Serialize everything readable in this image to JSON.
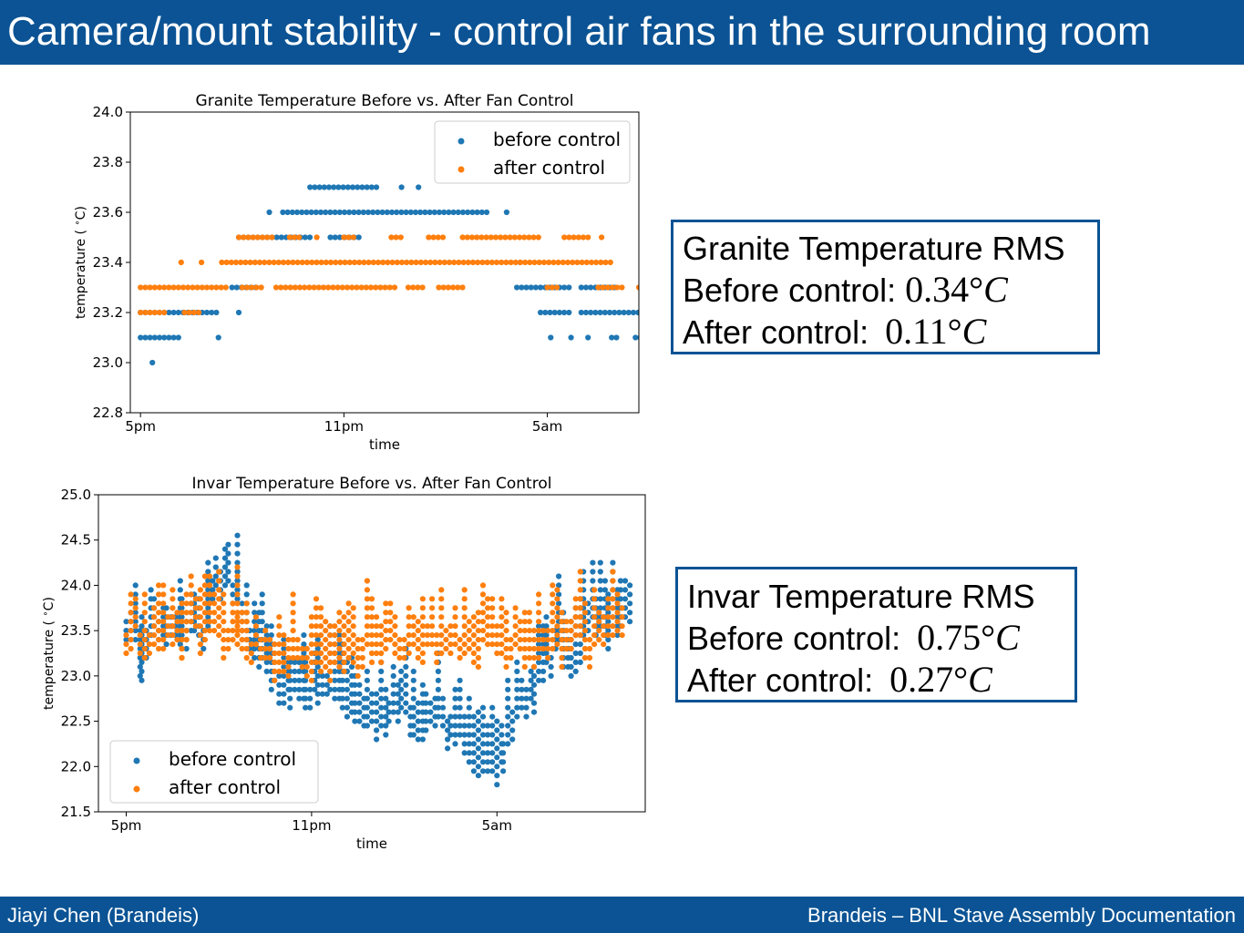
{
  "header": {
    "title": "Camera/mount stability - control air fans in the surrounding room"
  },
  "footer": {
    "left": "Jiayi Chen (Brandeis)",
    "right": "Brandeis – BNL Stave Assembly Documentation"
  },
  "rms_boxes": {
    "granite": {
      "title": "Granite Temperature RMS",
      "before_label": "Before control:",
      "before_value": "0.34°",
      "before_unit": "C",
      "after_label": "After control:",
      "after_value": "0.11°",
      "after_unit": "C"
    },
    "invar": {
      "title": "Invar Temperature RMS",
      "before_label": "Before control:",
      "before_value": "0.75°",
      "before_unit": "C",
      "after_label": "After control:",
      "after_value": "0.27°",
      "after_unit": "C"
    }
  },
  "colors": {
    "brand": "#0b5394",
    "before": "#1f77b4",
    "after": "#ff7f0e"
  },
  "chart_data": [
    {
      "id": "granite",
      "type": "scatter",
      "title": "Granite Temperature Before vs. After Fan Control",
      "xlabel": "time",
      "ylabel": "temperature ($^\\circ$C)",
      "xlim": [
        -0.3,
        14.7
      ],
      "ylim": [
        22.8,
        24.0
      ],
      "yticks": [
        22.8,
        23.0,
        23.2,
        23.4,
        23.6,
        23.8,
        24.0
      ],
      "ytick_labels": [
        "22.8",
        "23.0",
        "23.2",
        "23.4",
        "23.6",
        "23.8",
        "24.0"
      ],
      "xticks": [
        0,
        6,
        12
      ],
      "xtick_labels": [
        "5pm",
        "11pm",
        "5am"
      ],
      "legend": "upper right",
      "series": [
        {
          "name": "before control",
          "color": "#1f77b4",
          "runs": [
            {
              "y": 23.1,
              "x": [
                0,
                1.2
              ]
            },
            {
              "y": 23.1,
              "x": [
                2.3,
                2.3
              ]
            },
            {
              "y": 23.0,
              "x": [
                0.35,
                0.35
              ]
            },
            {
              "y": 23.2,
              "x": [
                0,
                2.3
              ]
            },
            {
              "y": 23.2,
              "x": [
                2.9,
                2.9
              ]
            },
            {
              "y": 23.3,
              "x": [
                2.7,
                3.4
              ]
            },
            {
              "y": 23.5,
              "x": [
                2.9,
                5.0
              ]
            },
            {
              "y": 23.5,
              "x": [
                5.6,
                6.5
              ]
            },
            {
              "y": 23.6,
              "x": [
                3.8,
                3.8
              ]
            },
            {
              "y": 23.6,
              "x": [
                4.2,
                10.3
              ]
            },
            {
              "y": 23.6,
              "x": [
                10.8,
                10.8
              ]
            },
            {
              "y": 23.7,
              "x": [
                5.0,
                7.0
              ]
            },
            {
              "y": 23.7,
              "x": [
                7.7,
                7.7
              ]
            },
            {
              "y": 23.7,
              "x": [
                8.2,
                8.2
              ]
            },
            {
              "y": 23.4,
              "x": [
                11.2,
                11.2
              ]
            },
            {
              "y": 23.3,
              "x": [
                11.1,
                12.7
              ]
            },
            {
              "y": 23.3,
              "x": [
                13.0,
                14.0
              ]
            },
            {
              "y": 23.2,
              "x": [
                11.8,
                12.7
              ]
            },
            {
              "y": 23.2,
              "x": [
                13.0,
                16.0
              ]
            },
            {
              "y": 23.1,
              "x": [
                12.1,
                12.1
              ]
            },
            {
              "y": 23.1,
              "x": [
                12.7,
                12.7
              ]
            },
            {
              "y": 23.1,
              "x": [
                13.2,
                13.2
              ]
            },
            {
              "y": 23.1,
              "x": [
                13.9,
                14.1
              ]
            },
            {
              "y": 23.1,
              "x": [
                14.6,
                15.0
              ]
            },
            {
              "y": 23.1,
              "x": [
                15.7,
                15.7
              ]
            }
          ]
        },
        {
          "name": "after control",
          "color": "#ff7f0e",
          "runs": [
            {
              "y": 23.3,
              "x": [
                0,
                2.6
              ]
            },
            {
              "y": 23.3,
              "x": [
                3.0,
                3.6
              ]
            },
            {
              "y": 23.3,
              "x": [
                4.0,
                7.5
              ]
            },
            {
              "y": 23.3,
              "x": [
                7.9,
                8.4
              ]
            },
            {
              "y": 23.3,
              "x": [
                8.8,
                9.5
              ]
            },
            {
              "y": 23.3,
              "x": [
                12.0,
                12.3
              ]
            },
            {
              "y": 23.3,
              "x": [
                13.5,
                14.3
              ]
            },
            {
              "y": 23.3,
              "x": [
                14.7,
                14.9
              ]
            },
            {
              "y": 23.2,
              "x": [
                0,
                0.8
              ]
            },
            {
              "y": 23.2,
              "x": [
                1.3,
                1.8
              ]
            },
            {
              "y": 23.4,
              "x": [
                1.2,
                1.2
              ]
            },
            {
              "y": 23.4,
              "x": [
                1.8,
                1.8
              ]
            },
            {
              "y": 23.4,
              "x": [
                2.4,
                14.0
              ]
            },
            {
              "y": 23.5,
              "x": [
                2.9,
                3.9
              ]
            },
            {
              "y": 23.5,
              "x": [
                4.4,
                4.7
              ]
            },
            {
              "y": 23.5,
              "x": [
                5.2,
                5.2
              ]
            },
            {
              "y": 23.5,
              "x": [
                6.0,
                6.4
              ]
            },
            {
              "y": 23.5,
              "x": [
                7.4,
                7.8
              ]
            },
            {
              "y": 23.5,
              "x": [
                8.5,
                9.0
              ]
            },
            {
              "y": 23.5,
              "x": [
                9.5,
                11.8
              ]
            },
            {
              "y": 23.5,
              "x": [
                12.5,
                13.2
              ]
            },
            {
              "y": 23.5,
              "x": [
                13.6,
                13.6
              ]
            }
          ]
        }
      ]
    },
    {
      "id": "invar",
      "type": "scatter",
      "title": "Invar Temperature Before vs. After Fan Control",
      "xlabel": "time",
      "ylabel": "temperature ($^\\circ$C)",
      "xlim": [
        -0.9,
        16.8
      ],
      "ylim": [
        21.5,
        25.0
      ],
      "yticks": [
        21.5,
        22.0,
        22.5,
        23.0,
        23.5,
        24.0,
        24.5,
        25.0
      ],
      "ytick_labels": [
        "21.5",
        "22.0",
        "22.5",
        "23.0",
        "23.5",
        "24.0",
        "24.5",
        "25.0"
      ],
      "xticks": [
        0,
        6,
        12
      ],
      "xtick_labels": [
        "5pm",
        "11pm",
        "5am"
      ],
      "legend": "lower left",
      "series": [
        {
          "name": "before control",
          "color": "#1f77b4",
          "points": [
            [
              0,
              23.8
            ],
            [
              0.3,
              23.65
            ],
            [
              0.5,
              23.3
            ],
            [
              0.9,
              23.85
            ],
            [
              1.3,
              23.7
            ],
            [
              1.8,
              23.65
            ],
            [
              2.2,
              23.9
            ],
            [
              2.5,
              23.6
            ],
            [
              2.9,
              24.2
            ],
            [
              3.3,
              24.3
            ],
            [
              3.6,
              24.05
            ],
            [
              4.0,
              23.75
            ],
            [
              4.4,
              23.4
            ],
            [
              4.8,
              23.15
            ],
            [
              5.3,
              23.05
            ],
            [
              5.8,
              23.0
            ],
            [
              6.2,
              23.05
            ],
            [
              6.6,
              23.1
            ],
            [
              7.0,
              22.95
            ],
            [
              7.4,
              22.85
            ],
            [
              7.8,
              22.8
            ],
            [
              8.1,
              22.7
            ],
            [
              8.5,
              22.75
            ],
            [
              8.9,
              22.9
            ],
            [
              9.3,
              22.65
            ],
            [
              9.7,
              22.7
            ],
            [
              10.1,
              22.75
            ],
            [
              10.5,
              22.6
            ],
            [
              10.8,
              22.65
            ],
            [
              11.1,
              22.45
            ],
            [
              11.4,
              22.3
            ],
            [
              11.7,
              22.15
            ],
            [
              12.0,
              22.2
            ],
            [
              12.2,
              22.35
            ],
            [
              12.5,
              22.6
            ],
            [
              12.8,
              22.9
            ],
            [
              13.2,
              23.05
            ],
            [
              13.6,
              23.35
            ],
            [
              14.0,
              23.6
            ],
            [
              14.4,
              23.3
            ],
            [
              14.8,
              23.7
            ],
            [
              15.2,
              23.9
            ],
            [
              15.6,
              23.75
            ],
            [
              16.0,
              23.9
            ]
          ],
          "spread": 0.45
        },
        {
          "name": "after control",
          "color": "#ff7f0e",
          "points": [
            [
              0,
              23.6
            ],
            [
              0.3,
              23.7
            ],
            [
              0.6,
              23.5
            ],
            [
              0.9,
              23.6
            ],
            [
              1.2,
              23.7
            ],
            [
              1.5,
              23.75
            ],
            [
              1.8,
              23.55
            ],
            [
              2.1,
              23.8
            ],
            [
              2.4,
              23.6
            ],
            [
              2.7,
              23.85
            ],
            [
              3.0,
              23.65
            ],
            [
              3.3,
              23.5
            ],
            [
              3.6,
              23.75
            ],
            [
              3.9,
              23.5
            ],
            [
              4.2,
              23.55
            ],
            [
              4.5,
              23.45
            ],
            [
              4.8,
              23.35
            ],
            [
              5.1,
              23.3
            ],
            [
              5.4,
              23.35
            ],
            [
              5.7,
              23.4
            ],
            [
              6.0,
              23.3
            ],
            [
              6.3,
              23.4
            ],
            [
              6.6,
              23.3
            ],
            [
              6.9,
              23.45
            ],
            [
              7.2,
              23.4
            ],
            [
              7.5,
              23.35
            ],
            [
              7.8,
              23.5
            ],
            [
              8.1,
              23.45
            ],
            [
              8.4,
              23.5
            ],
            [
              8.7,
              23.6
            ],
            [
              9.0,
              23.5
            ],
            [
              9.3,
              23.55
            ],
            [
              9.6,
              23.5
            ],
            [
              9.9,
              23.6
            ],
            [
              10.2,
              23.5
            ],
            [
              10.5,
              23.55
            ],
            [
              10.8,
              23.5
            ],
            [
              11.1,
              23.55
            ],
            [
              11.4,
              23.5
            ],
            [
              11.7,
              23.6
            ],
            [
              12.0,
              23.55
            ],
            [
              12.3,
              23.45
            ],
            [
              12.6,
              23.6
            ],
            [
              12.9,
              23.45
            ],
            [
              13.2,
              23.4
            ],
            [
              13.5,
              23.5
            ],
            [
              13.8,
              23.6
            ],
            [
              14.1,
              23.5
            ],
            [
              14.4,
              23.65
            ],
            [
              14.7,
              23.6
            ],
            [
              15.0,
              23.5
            ],
            [
              15.3,
              23.65
            ],
            [
              15.6,
              23.7
            ],
            [
              15.9,
              23.7
            ]
          ],
          "spread": 0.4
        }
      ]
    }
  ]
}
